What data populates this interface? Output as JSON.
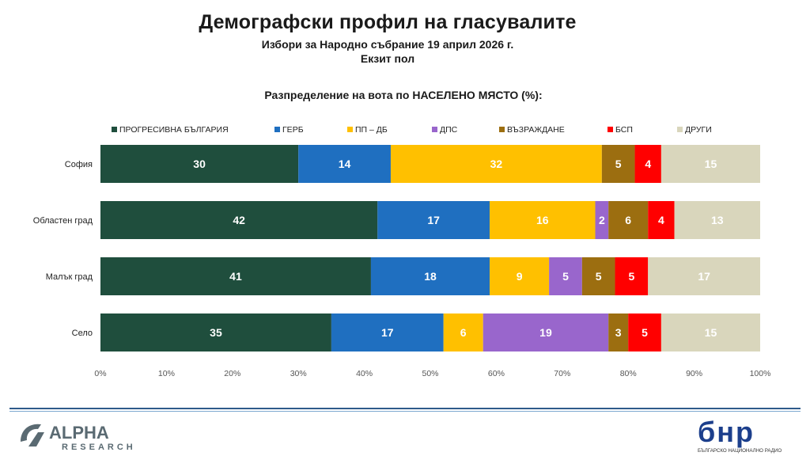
{
  "header": {
    "title": "Демографски профил на гласувалите",
    "subtitle_line1": "Избори за Народно събрание 19 април 2026 г.",
    "subtitle_line2": "Екзит пол"
  },
  "chart_data": {
    "type": "bar",
    "orientation": "horizontal-stacked-100",
    "title": "Разпределение на вота по НАСЕЛЕНО МЯСТО (%):",
    "categories": [
      "София",
      "Областен град",
      "Малък град",
      "Село"
    ],
    "series": [
      {
        "name": "ПРОГРЕСИВНА БЪЛГАРИЯ",
        "color": "#1f4e3d",
        "values": [
          30,
          42,
          41,
          35
        ]
      },
      {
        "name": "ГЕРБ",
        "color": "#1f6fc0",
        "values": [
          14,
          17,
          18,
          17
        ]
      },
      {
        "name": "ПП – ДБ",
        "color": "#ffc000",
        "values": [
          32,
          16,
          9,
          6
        ]
      },
      {
        "name": "ДПС",
        "color": "#9966cc",
        "values": [
          0,
          2,
          5,
          19
        ]
      },
      {
        "name": "ВЪЗРАЖДАНЕ",
        "color": "#9c6e10",
        "values": [
          5,
          6,
          5,
          3
        ]
      },
      {
        "name": "БСП",
        "color": "#ff0000",
        "values": [
          4,
          4,
          5,
          5
        ]
      },
      {
        "name": "ДРУГИ",
        "color": "#d9d6bc",
        "values": [
          15,
          13,
          17,
          15
        ]
      }
    ],
    "xlim": [
      0,
      100
    ],
    "x_ticks": [
      "0%",
      "10%",
      "20%",
      "30%",
      "40%",
      "50%",
      "60%",
      "70%",
      "80%",
      "90%",
      "100%"
    ],
    "legend_position": "top"
  },
  "logos": {
    "alpha_main": "ALPHA",
    "alpha_sub": "RESEARCH",
    "bnr_main": "бнр",
    "bnr_sub": "БЪЛГАРСКО НАЦИОНАЛНО РАДИО"
  },
  "colors": {
    "accent_line": "#2e5a8a",
    "bnr_blue": "#1c3f8c"
  }
}
